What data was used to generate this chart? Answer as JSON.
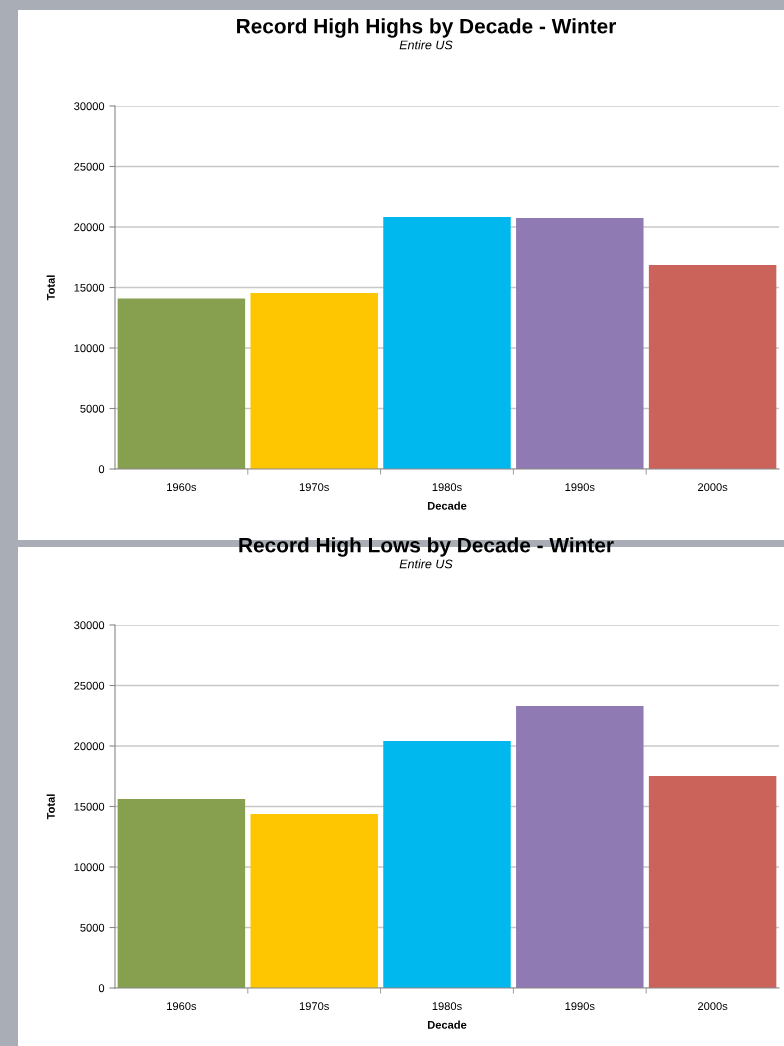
{
  "chart_data": [
    {
      "type": "bar",
      "title": "Record High Highs by Decade - Winter",
      "subtitle": "Entire US",
      "xlabel": "Decade",
      "ylabel": "Total",
      "categories": [
        "1960s",
        "1970s",
        "1980s",
        "1990s",
        "2000s"
      ],
      "values": [
        14100,
        14550,
        20830,
        20740,
        16860
      ],
      "colors": [
        "#87a04f",
        "#fec600",
        "#00b7ee",
        "#8f7ab3",
        "#cc635a"
      ],
      "ylim": [
        0,
        30000
      ],
      "yticks": [
        0,
        5000,
        10000,
        15000,
        20000,
        25000,
        30000
      ],
      "grid": "y"
    },
    {
      "type": "bar",
      "title": "Record High Lows by Decade - Winter",
      "subtitle": "Entire US",
      "xlabel": "Decade",
      "ylabel": "Total",
      "categories": [
        "1960s",
        "1970s",
        "1980s",
        "1990s",
        "2000s"
      ],
      "values": [
        15620,
        14380,
        20410,
        23300,
        17520
      ],
      "colors": [
        "#87a04f",
        "#fec600",
        "#00b7ee",
        "#8f7ab3",
        "#cc635a"
      ],
      "ylim": [
        0,
        30000
      ],
      "yticks": [
        0,
        5000,
        10000,
        15000,
        20000,
        25000,
        30000
      ],
      "grid": "y"
    }
  ]
}
